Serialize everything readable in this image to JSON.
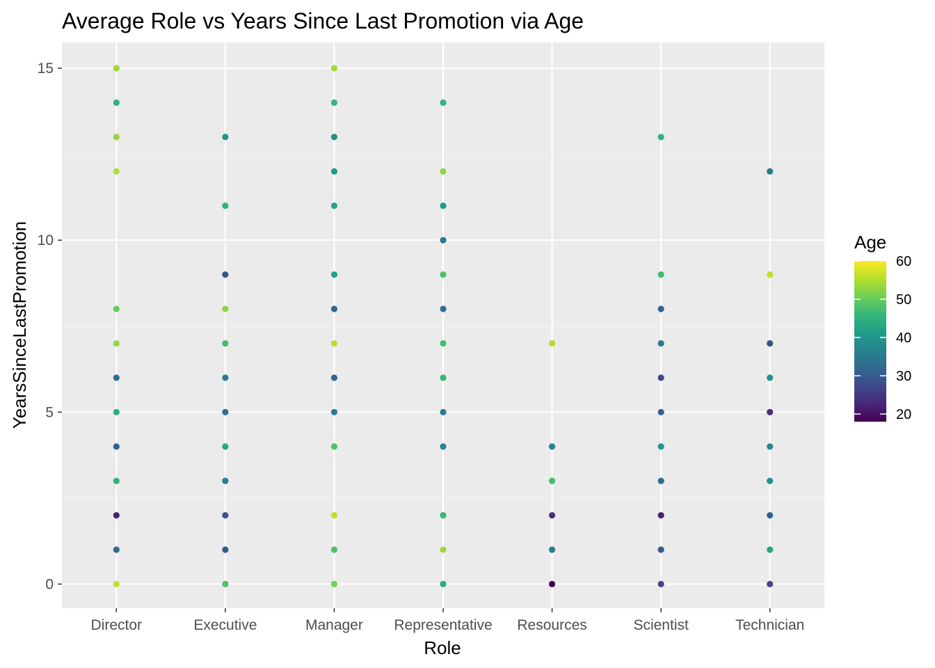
{
  "chart_data": {
    "type": "scatter",
    "title": "Average Role vs Years Since Last Promotion via Age",
    "xlabel": "Role",
    "ylabel": "YearsSinceLastPromotion",
    "categories": [
      "Director",
      "Executive",
      "Manager",
      "Representative",
      "Resources",
      "Scientist",
      "Technician"
    ],
    "ylim": [
      -0.7,
      15.75
    ],
    "yticks": [
      0,
      5,
      10,
      15
    ],
    "ytick_labels": [
      "0",
      "5",
      "10",
      "15"
    ],
    "grid": true,
    "color_by": "Age",
    "colorscale": "viridis",
    "color_range": [
      18,
      60
    ],
    "legend": {
      "title": "Age",
      "position": "right",
      "ticks": [
        20,
        30,
        40,
        50,
        60
      ],
      "tick_labels": [
        "20",
        "30",
        "40",
        "50",
        "60"
      ]
    },
    "points": [
      {
        "x": "Director",
        "y": 15,
        "age": 54
      },
      {
        "x": "Director",
        "y": 14,
        "age": 45
      },
      {
        "x": "Director",
        "y": 13,
        "age": 53
      },
      {
        "x": "Director",
        "y": 12,
        "age": 55
      },
      {
        "x": "Director",
        "y": 8,
        "age": 50
      },
      {
        "x": "Director",
        "y": 7,
        "age": 53
      },
      {
        "x": "Director",
        "y": 6,
        "age": 33
      },
      {
        "x": "Director",
        "y": 5,
        "age": 44
      },
      {
        "x": "Director",
        "y": 4,
        "age": 31
      },
      {
        "x": "Director",
        "y": 3,
        "age": 45
      },
      {
        "x": "Director",
        "y": 2,
        "age": 22
      },
      {
        "x": "Director",
        "y": 1,
        "age": 32
      },
      {
        "x": "Director",
        "y": 0,
        "age": 56
      },
      {
        "x": "Executive",
        "y": 13,
        "age": 40
      },
      {
        "x": "Executive",
        "y": 11,
        "age": 45
      },
      {
        "x": "Executive",
        "y": 9,
        "age": 29
      },
      {
        "x": "Executive",
        "y": 8,
        "age": 53
      },
      {
        "x": "Executive",
        "y": 7,
        "age": 47
      },
      {
        "x": "Executive",
        "y": 6,
        "age": 36
      },
      {
        "x": "Executive",
        "y": 5,
        "age": 33
      },
      {
        "x": "Executive",
        "y": 4,
        "age": 43
      },
      {
        "x": "Executive",
        "y": 3,
        "age": 36
      },
      {
        "x": "Executive",
        "y": 2,
        "age": 29
      },
      {
        "x": "Executive",
        "y": 1,
        "age": 30
      },
      {
        "x": "Executive",
        "y": 0,
        "age": 48
      },
      {
        "x": "Manager",
        "y": 15,
        "age": 54
      },
      {
        "x": "Manager",
        "y": 14,
        "age": 46
      },
      {
        "x": "Manager",
        "y": 13,
        "age": 39
      },
      {
        "x": "Manager",
        "y": 12,
        "age": 41
      },
      {
        "x": "Manager",
        "y": 11,
        "age": 42
      },
      {
        "x": "Manager",
        "y": 9,
        "age": 42
      },
      {
        "x": "Manager",
        "y": 8,
        "age": 32
      },
      {
        "x": "Manager",
        "y": 7,
        "age": 56
      },
      {
        "x": "Manager",
        "y": 6,
        "age": 32
      },
      {
        "x": "Manager",
        "y": 5,
        "age": 35
      },
      {
        "x": "Manager",
        "y": 4,
        "age": 48
      },
      {
        "x": "Manager",
        "y": 2,
        "age": 56
      },
      {
        "x": "Manager",
        "y": 1,
        "age": 48
      },
      {
        "x": "Manager",
        "y": 0,
        "age": 51
      },
      {
        "x": "Representative",
        "y": 14,
        "age": 45
      },
      {
        "x": "Representative",
        "y": 12,
        "age": 53
      },
      {
        "x": "Representative",
        "y": 11,
        "age": 41
      },
      {
        "x": "Representative",
        "y": 10,
        "age": 35
      },
      {
        "x": "Representative",
        "y": 9,
        "age": 48
      },
      {
        "x": "Representative",
        "y": 8,
        "age": 33
      },
      {
        "x": "Representative",
        "y": 7,
        "age": 47
      },
      {
        "x": "Representative",
        "y": 6,
        "age": 46
      },
      {
        "x": "Representative",
        "y": 5,
        "age": 36
      },
      {
        "x": "Representative",
        "y": 4,
        "age": 37
      },
      {
        "x": "Representative",
        "y": 2,
        "age": 46
      },
      {
        "x": "Representative",
        "y": 1,
        "age": 54
      },
      {
        "x": "Representative",
        "y": 0,
        "age": 44
      },
      {
        "x": "Resources",
        "y": 7,
        "age": 55
      },
      {
        "x": "Resources",
        "y": 4,
        "age": 37
      },
      {
        "x": "Resources",
        "y": 3,
        "age": 47
      },
      {
        "x": "Resources",
        "y": 2,
        "age": 24
      },
      {
        "x": "Resources",
        "y": 1,
        "age": 36
      },
      {
        "x": "Resources",
        "y": 0,
        "age": 18
      },
      {
        "x": "Scientist",
        "y": 13,
        "age": 45
      },
      {
        "x": "Scientist",
        "y": 9,
        "age": 47
      },
      {
        "x": "Scientist",
        "y": 8,
        "age": 32
      },
      {
        "x": "Scientist",
        "y": 7,
        "age": 35
      },
      {
        "x": "Scientist",
        "y": 6,
        "age": 27
      },
      {
        "x": "Scientist",
        "y": 5,
        "age": 31
      },
      {
        "x": "Scientist",
        "y": 4,
        "age": 40
      },
      {
        "x": "Scientist",
        "y": 3,
        "age": 33
      },
      {
        "x": "Scientist",
        "y": 2,
        "age": 22
      },
      {
        "x": "Scientist",
        "y": 1,
        "age": 30
      },
      {
        "x": "Scientist",
        "y": 0,
        "age": 27
      },
      {
        "x": "Technician",
        "y": 12,
        "age": 35
      },
      {
        "x": "Technician",
        "y": 9,
        "age": 56
      },
      {
        "x": "Technician",
        "y": 7,
        "age": 29
      },
      {
        "x": "Technician",
        "y": 6,
        "age": 39
      },
      {
        "x": "Technician",
        "y": 5,
        "age": 24
      },
      {
        "x": "Technician",
        "y": 4,
        "age": 38
      },
      {
        "x": "Technician",
        "y": 3,
        "age": 39
      },
      {
        "x": "Technician",
        "y": 2,
        "age": 31
      },
      {
        "x": "Technician",
        "y": 1,
        "age": 43
      },
      {
        "x": "Technician",
        "y": 0,
        "age": 27
      }
    ]
  },
  "colors": {
    "panel_background": "#ebebeb",
    "grid_major": "#ffffff",
    "grid_minor": "#f5f5f5",
    "tick_color": "#333333",
    "viridis_stops": [
      "#440154",
      "#482878",
      "#3e4989",
      "#31688e",
      "#26828e",
      "#1f9e89",
      "#35b779",
      "#6ece58",
      "#b5de2b",
      "#fde725"
    ]
  }
}
